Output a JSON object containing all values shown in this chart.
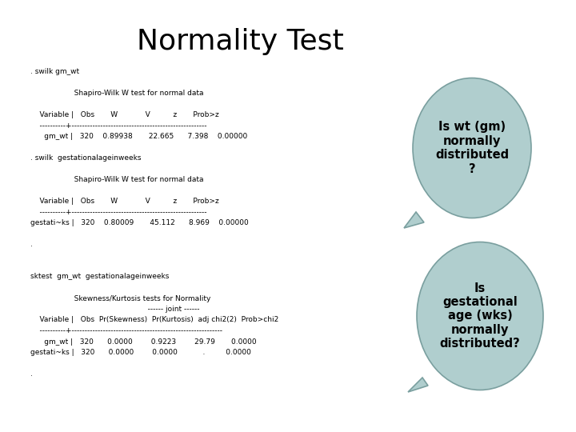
{
  "title": "Normality Test",
  "background_color": "#ffffff",
  "title_fontsize": 26,
  "title_fontweight": "normal",
  "bubble1_color": "#b0cece",
  "bubble2_color": "#b0cece",
  "bubble_edge_color": "#7a9f9f",
  "bubble1_text": "Is wt (gm)\nnormally\ndistributed\n?",
  "bubble2_text": "Is\ngestational\nage (wks)\nnormally\ndistributed?",
  "stata_lines": [
    ". swilk gm_wt",
    "",
    "                   Shapiro-Wilk W test for normal data",
    "",
    "    Variable |   Obs       W            V          z       Prob>z",
    "    ----------+----------------------------------------------------",
    "      gm_wt |   320    0.89938       22.665      7.398    0.00000",
    "",
    ". swilk  gestationalageinweeks",
    "",
    "                   Shapiro-Wilk W test for normal data",
    "",
    "    Variable |   Obs       W            V          z       Prob>z",
    "    ----------+----------------------------------------------------",
    "gestati~ks |   320    0.80009       45.112      8.969    0.00000",
    "",
    ".",
    "",
    "",
    "sktest  gm_wt  gestationalageinweeks",
    "",
    "                   Skewness/Kurtosis tests for Normality",
    "                                                   ------ joint ------",
    "    Variable |   Obs  Pr(Skewness)  Pr(Kurtosis)  adj chi2(2)  Prob>chi2",
    "    ----------+----------------------------------------------------------",
    "      gm_wt |   320      0.0000        0.9223        29.79       0.0000",
    "gestati~ks |   320      0.0000        0.0000           .         0.0000",
    "",
    "."
  ]
}
